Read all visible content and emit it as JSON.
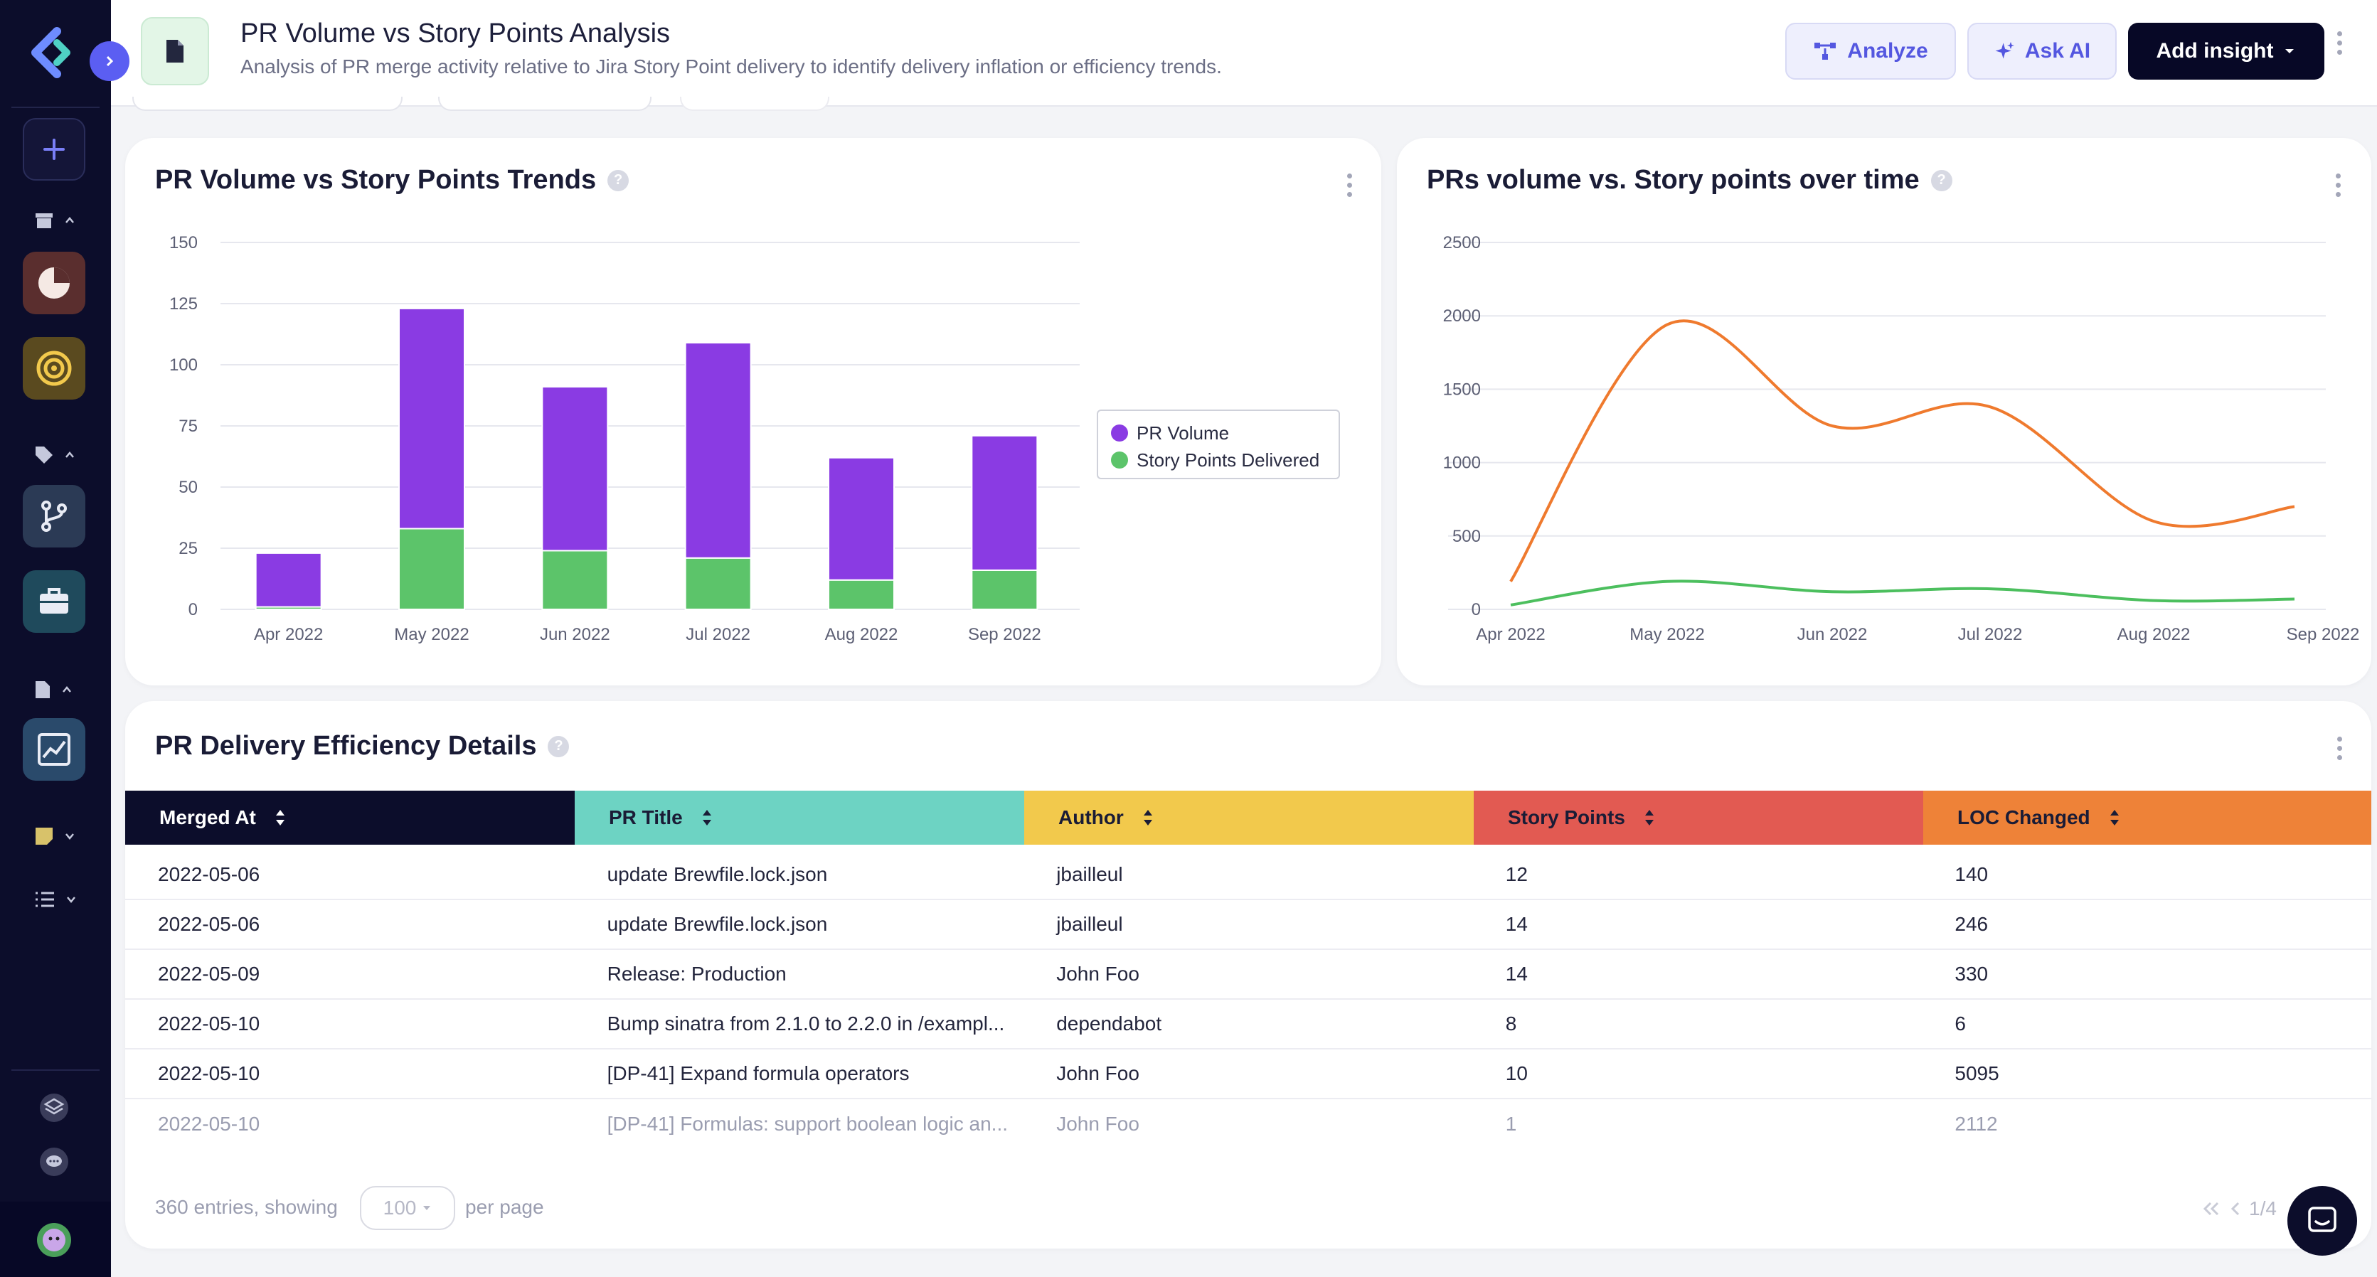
{
  "header": {
    "title": "PR Volume vs Story Points Analysis",
    "subtitle": "Analysis of PR merge activity relative to Jira Story Point delivery to identify delivery inflation or efficiency trends.",
    "analyze_label": "Analyze",
    "ask_ai_label": "Ask AI",
    "add_insight_label": "Add insight"
  },
  "bar_card": {
    "title": "PR Volume vs Story Points Trends",
    "help": "?",
    "legend": [
      "PR Volume",
      "Story Points Delivered"
    ]
  },
  "line_card": {
    "title": "PRs volume vs. Story points over time",
    "help": "?"
  },
  "table_card": {
    "title": "PR Delivery Efficiency Details",
    "help": "?",
    "columns": [
      "Merged At",
      "PR Title",
      "Author",
      "Story Points",
      "LOC Changed"
    ],
    "rows": [
      [
        "2022-05-06",
        "update Brewfile.lock.json",
        "jbailleul",
        "12",
        "140"
      ],
      [
        "2022-05-06",
        "update Brewfile.lock.json",
        "jbailleul",
        "14",
        "246"
      ],
      [
        "2022-05-09",
        "Release: Production",
        "John Foo",
        "14",
        "330"
      ],
      [
        "2022-05-10",
        "Bump sinatra from 2.1.0 to 2.2.0 in /exampl...",
        "dependabot",
        "8",
        "6"
      ],
      [
        "2022-05-10",
        "[DP-41] Expand formula operators",
        "John Foo",
        "10",
        "5095"
      ],
      [
        "2022-05-10",
        "[DP-41] Formulas: support boolean logic an...",
        "John Foo",
        "1",
        "2112"
      ]
    ],
    "footer": {
      "entries_text": "360 entries, showing",
      "per_page_value": "100",
      "per_page_text": "per page",
      "pagination": "1/4"
    }
  },
  "colors": {
    "pr_volume": "#8a3be3",
    "story_points": "#5cc46a",
    "line_orange": "#ef7a2e",
    "line_green": "#4cbf5e",
    "col_merged_at": "#0c0d2b",
    "col_pr_title": "#6dd3c3",
    "col_author": "#f2c94c",
    "col_story_points": "#e25a52",
    "col_loc_changed": "#ee8238"
  },
  "chart_data": [
    {
      "type": "bar",
      "stacked": true,
      "title": "PR Volume vs Story Points Trends",
      "categories": [
        "Apr 2022",
        "May 2022",
        "Jun 2022",
        "Jul 2022",
        "Aug 2022",
        "Sep 2022"
      ],
      "series": [
        {
          "name": "Story Points Delivered",
          "values": [
            1,
            33,
            24,
            21,
            12,
            16
          ]
        },
        {
          "name": "PR Volume",
          "values": [
            22,
            90,
            67,
            88,
            50,
            55
          ]
        }
      ],
      "yticks": [
        0,
        25,
        50,
        75,
        100,
        125,
        150
      ],
      "ylim": [
        0,
        150
      ],
      "grid": true,
      "legend": "right"
    },
    {
      "type": "line",
      "title": "PRs volume vs. Story points over time",
      "x": [
        "Apr 2022",
        "May 2022",
        "Jun 2022",
        "Jul 2022",
        "Aug 2022",
        "Sep 2022"
      ],
      "xticks": [
        "Apr 2022",
        "May 2022",
        "Jun 2022",
        "Jul 2022",
        "Aug 2022",
        "Sep 2022"
      ],
      "series": [
        {
          "values": [
            190,
            1940,
            1250,
            1380,
            600,
            700
          ]
        },
        {
          "values": [
            30,
            190,
            120,
            140,
            60,
            70
          ]
        }
      ],
      "yticks": [
        0,
        500,
        1000,
        1500,
        2000,
        2500
      ],
      "ylim": [
        0,
        2500
      ],
      "grid": true
    }
  ]
}
